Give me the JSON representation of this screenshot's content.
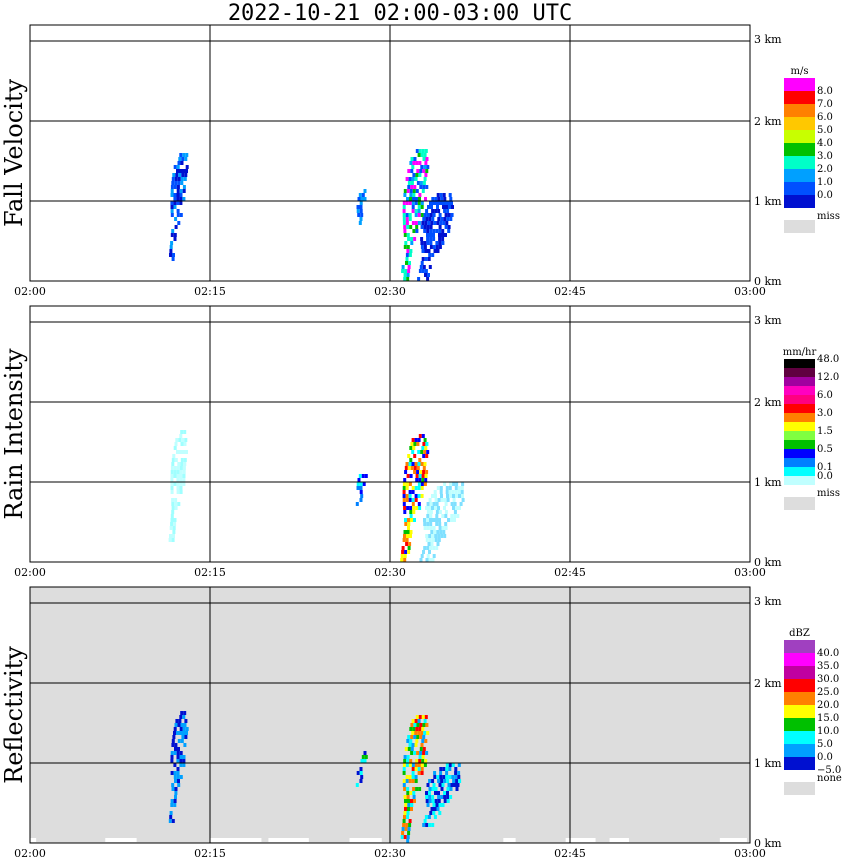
{
  "title": "2022-10-21   02:00-03:00 UTC",
  "x_ticks": [
    "02:00",
    "02:15",
    "02:30",
    "02:45",
    "03:00"
  ],
  "y_ticks": [
    "0 km",
    "1 km",
    "2 km",
    "3 km"
  ],
  "colors": {
    "missing": "#dddddd",
    "grid": "#000000"
  },
  "chart_data": [
    {
      "type": "heatmap",
      "ylabel": "Fall Velocity",
      "xlim": [
        "02:00",
        "03:00"
      ],
      "ylim_km": [
        0,
        3.1
      ],
      "grid": true,
      "legend_position": "right",
      "legend": {
        "unit": "m/s",
        "labels": [
          "8.0",
          "7.0",
          "6.0",
          "5.0",
          "4.0",
          "3.0",
          "2.0",
          "1.0",
          "0.0"
        ],
        "colors": [
          "#ff00ff",
          "#ff0000",
          "#ff8000",
          "#ffc800",
          "#c8ff00",
          "#00c000",
          "#00ffc8",
          "#00a0ff",
          "#0050ff",
          "#0010d0"
        ],
        "missing_label": "miss"
      },
      "echoes": [
        {
          "t_min": 12.2,
          "top_km": 1.65,
          "bottom_km": 0.28,
          "width_min": 1.2,
          "colors": [
            "#0050ff",
            "#00a0ff",
            "#0010d0"
          ]
        },
        {
          "t_min": 27.5,
          "top_km": 1.15,
          "bottom_km": 0.72,
          "width_min": 0.7,
          "colors": [
            "#0050ff",
            "#00a0ff"
          ]
        },
        {
          "t_min": 31.8,
          "top_km": 1.65,
          "bottom_km": 0.0,
          "width_min": 1.8,
          "colors": [
            "#00ffc8",
            "#00a0ff",
            "#00c000",
            "#ff00ff",
            "#0050ff"
          ]
        },
        {
          "t_min": 33.5,
          "top_km": 1.1,
          "bottom_km": 0.0,
          "width_min": 2.4,
          "colors": [
            "#0050ff",
            "#0010d0"
          ]
        }
      ]
    },
    {
      "type": "heatmap",
      "ylabel": "Rain Intensity",
      "xlim": [
        "02:00",
        "03:00"
      ],
      "ylim_km": [
        0,
        3.1
      ],
      "grid": true,
      "legend_position": "right",
      "legend": {
        "unit": "mm/hr",
        "labels": [
          "48.0",
          "12.0",
          "6.0",
          "3.0",
          "1.5",
          "0.5",
          "0.1",
          "0.0"
        ],
        "label_slots": [
          0,
          2,
          4,
          6,
          8,
          10,
          12,
          13
        ],
        "colors": [
          "#000000",
          "#600040",
          "#a000a0",
          "#ff00c0",
          "#ff0080",
          "#ff0000",
          "#ff8000",
          "#ffff00",
          "#80ff40",
          "#00c000",
          "#0000ff",
          "#0080ff",
          "#00ffff",
          "#c0ffff"
        ],
        "missing_label": "miss"
      },
      "echoes": [
        {
          "t_min": 12.2,
          "top_km": 1.65,
          "bottom_km": 0.28,
          "width_min": 1.2,
          "colors": [
            "#c0ffff",
            "#a0ffff"
          ]
        },
        {
          "t_min": 27.5,
          "top_km": 1.15,
          "bottom_km": 0.72,
          "width_min": 0.7,
          "colors": [
            "#0080ff",
            "#00ffff",
            "#0000ff"
          ]
        },
        {
          "t_min": 31.8,
          "top_km": 1.6,
          "bottom_km": 0.0,
          "width_min": 1.8,
          "colors": [
            "#ffff00",
            "#ff0000",
            "#00c000",
            "#0000ff",
            "#00ffff",
            "#ff8000"
          ]
        },
        {
          "t_min": 34.0,
          "top_km": 1.0,
          "bottom_km": 0.0,
          "width_min": 3.0,
          "colors": [
            "#c0ffff",
            "#80e0ff"
          ]
        }
      ]
    },
    {
      "type": "heatmap",
      "ylabel": "Reflectivity",
      "xlim": [
        "02:00",
        "03:00"
      ],
      "ylim_km": [
        0,
        3.1
      ],
      "grid": true,
      "legend_position": "right",
      "background": "missing",
      "legend": {
        "unit": "dBZ",
        "labels": [
          "40.0",
          "35.0",
          "30.0",
          "25.0",
          "20.0",
          "15.0",
          "10.0",
          "5.0",
          "0.0",
          "−5.0"
        ],
        "colors": [
          "#a040c0",
          "#ff00ff",
          "#c000a0",
          "#ff0000",
          "#ff8000",
          "#ffff00",
          "#00c000",
          "#00ffff",
          "#00a0ff",
          "#0010d0"
        ],
        "missing_label": "none"
      },
      "echoes": [
        {
          "t_min": 12.2,
          "top_km": 1.65,
          "bottom_km": 0.25,
          "width_min": 1.2,
          "colors": [
            "#0010d0",
            "#00a0ff"
          ]
        },
        {
          "t_min": 27.5,
          "top_km": 1.15,
          "bottom_km": 0.72,
          "width_min": 0.7,
          "colors": [
            "#0010d0",
            "#00ffff",
            "#00c000"
          ]
        },
        {
          "t_min": 31.8,
          "top_km": 1.6,
          "bottom_km": 0.0,
          "width_min": 1.8,
          "colors": [
            "#ffff00",
            "#ff8000",
            "#00c000",
            "#ff0000",
            "#00ffff",
            "#00a0ff"
          ]
        },
        {
          "t_min": 34.0,
          "top_km": 1.0,
          "bottom_km": 0.2,
          "width_min": 2.6,
          "colors": [
            "#0010d0",
            "#00a0ff",
            "#00ffff"
          ]
        }
      ]
    }
  ]
}
